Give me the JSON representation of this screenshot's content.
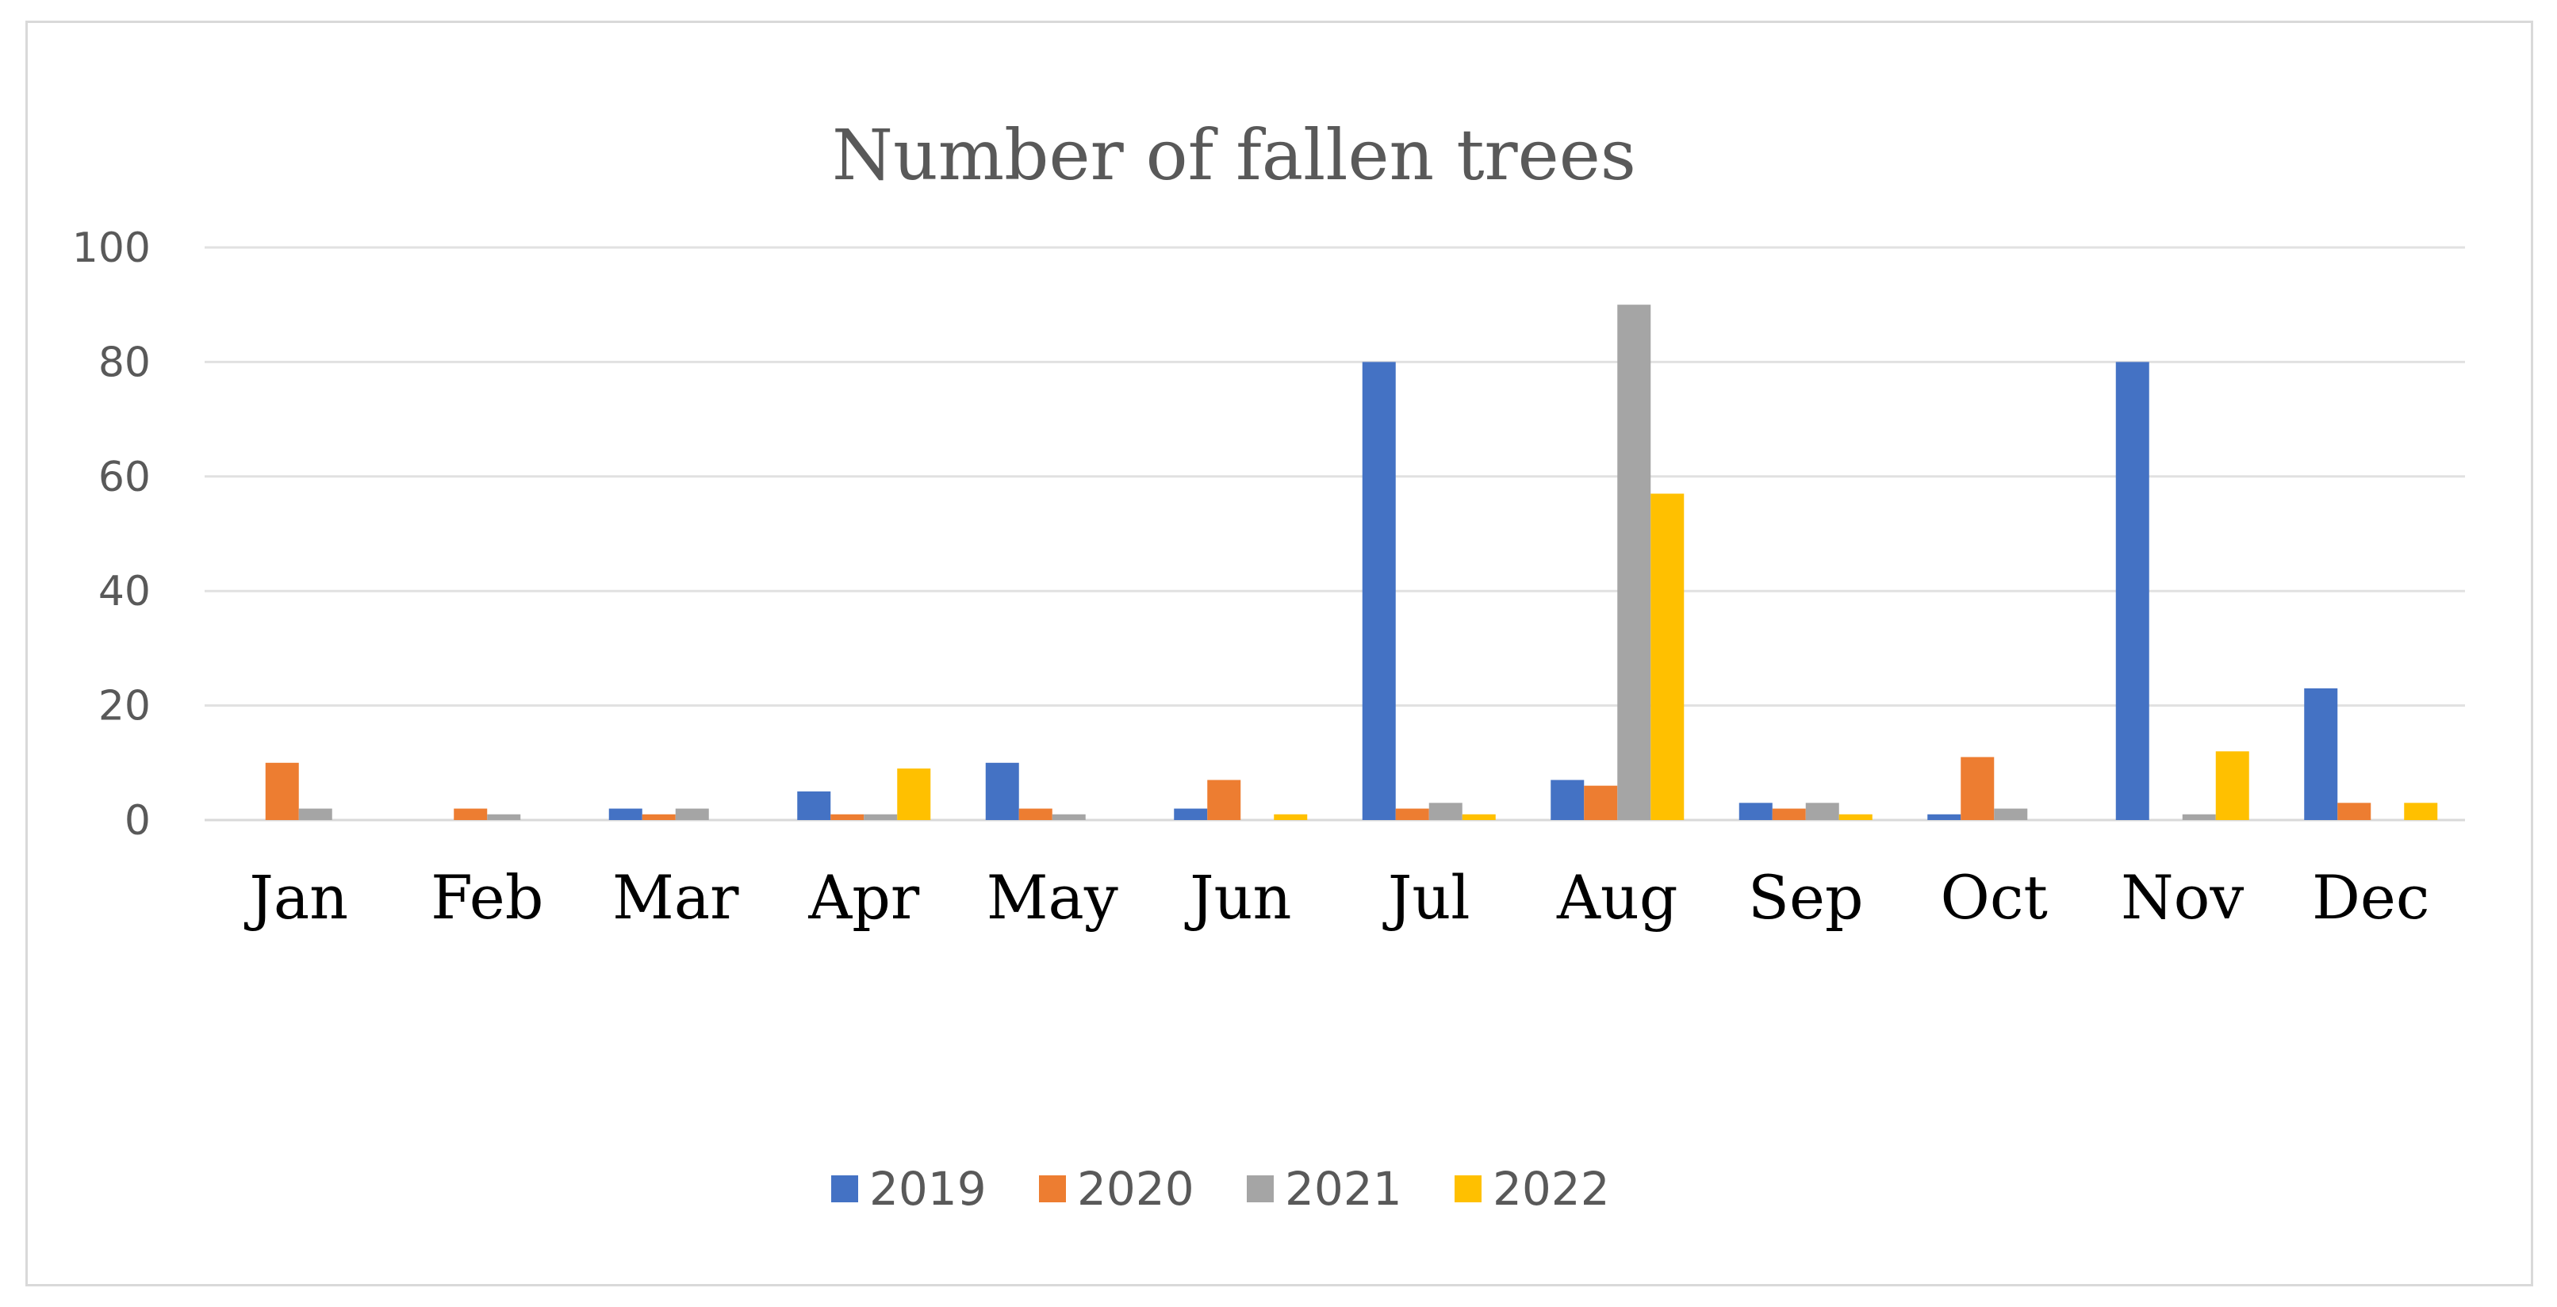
{
  "chart_data": {
    "type": "bar",
    "title": "Number of fallen trees",
    "xlabel": "",
    "ylabel": "",
    "ylim": [
      0,
      100
    ],
    "yticks": [
      0,
      20,
      40,
      60,
      80,
      100
    ],
    "grid": true,
    "legend_position": "bottom",
    "categories": [
      "Jan",
      "Feb",
      "Mar",
      "Apr",
      "May",
      "Jun",
      "Jul",
      "Aug",
      "Sep",
      "Oct",
      "Nov",
      "Dec"
    ],
    "series": [
      {
        "name": "2019",
        "color": "#4472c4",
        "values": [
          0,
          0,
          2,
          5,
          10,
          2,
          80,
          7,
          3,
          1,
          80,
          23
        ]
      },
      {
        "name": "2020",
        "color": "#ed7d31",
        "values": [
          10,
          2,
          1,
          1,
          2,
          7,
          2,
          6,
          2,
          11,
          0,
          3
        ]
      },
      {
        "name": "2021",
        "color": "#a5a5a5",
        "values": [
          2,
          1,
          2,
          1,
          1,
          0,
          3,
          90,
          3,
          2,
          1,
          0
        ]
      },
      {
        "name": "2022",
        "color": "#ffc000",
        "values": [
          0,
          0,
          0,
          9,
          0,
          1,
          1,
          57,
          1,
          0,
          12,
          3
        ]
      }
    ]
  }
}
